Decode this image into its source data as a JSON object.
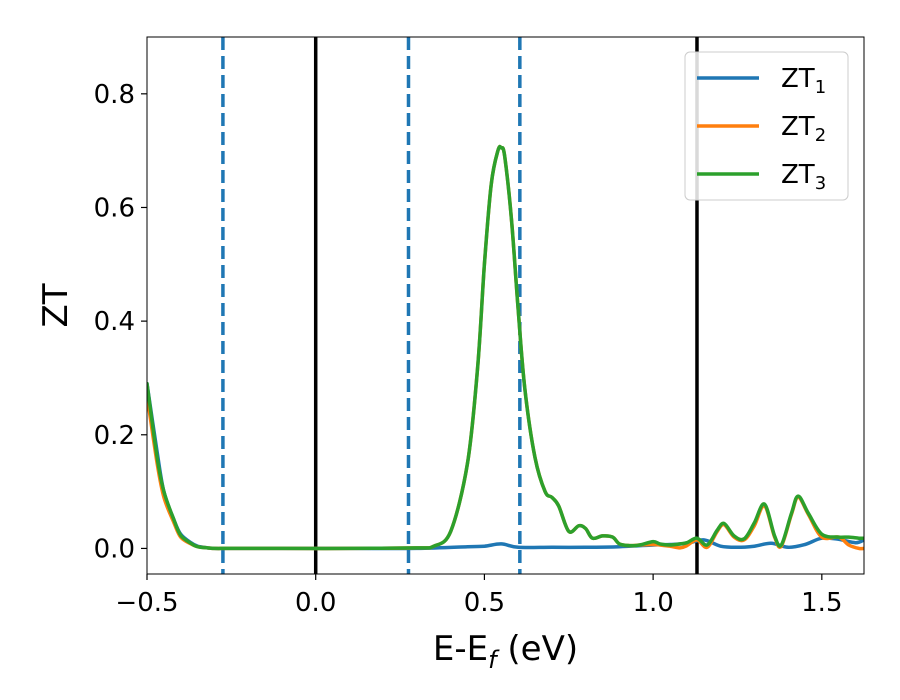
{
  "chart_data": {
    "type": "line",
    "xlabel_main": "E-E",
    "xlabel_sub": "f",
    "xlabel_unit": " (eV)",
    "ylabel": "ZT",
    "xlim": [
      -0.5,
      1.625
    ],
    "ylim": [
      -0.045,
      0.9
    ],
    "x_ticks": [
      -0.5,
      0.0,
      0.5,
      1.0,
      1.5
    ],
    "x_tick_labels": [
      "−0.5",
      "0.0",
      "0.5",
      "1.0",
      "1.5"
    ],
    "y_ticks": [
      0.0,
      0.2,
      0.4,
      0.6,
      0.8
    ],
    "y_tick_labels": [
      "0.0",
      "0.2",
      "0.4",
      "0.6",
      "0.8"
    ],
    "legend_position": "top-right",
    "vlines": [
      {
        "x": -0.275,
        "style": "dashed",
        "color": "#1f77b4"
      },
      {
        "x": 0.0,
        "style": "solid",
        "color": "#000000"
      },
      {
        "x": 0.275,
        "style": "dashed",
        "color": "#1f77b4"
      },
      {
        "x": 0.605,
        "style": "dashed",
        "color": "#1f77b4"
      },
      {
        "x": 1.13,
        "style": "solid",
        "color": "#000000"
      }
    ],
    "series": [
      {
        "name": "ZT",
        "sub": "1",
        "color": "#1f77b4",
        "x": [
          -0.5,
          -0.47,
          -0.45,
          -0.42,
          -0.4,
          -0.37,
          -0.35,
          -0.32,
          -0.3,
          -0.25,
          -0.1,
          0.1,
          0.3,
          0.45,
          0.5,
          0.55,
          0.6,
          0.7,
          0.8,
          0.9,
          1.0,
          1.05,
          1.1,
          1.15,
          1.2,
          1.25,
          1.3,
          1.35,
          1.4,
          1.45,
          1.5,
          1.55,
          1.6,
          1.625
        ],
        "y": [
          0.29,
          0.17,
          0.1,
          0.05,
          0.025,
          0.01,
          0.004,
          0.001,
          0.0,
          0.0,
          0.0,
          0.0,
          0.0,
          0.003,
          0.004,
          0.008,
          0.002,
          0.002,
          0.002,
          0.003,
          0.006,
          0.007,
          0.009,
          0.015,
          0.004,
          0.002,
          0.004,
          0.009,
          0.002,
          0.007,
          0.018,
          0.016,
          0.01,
          0.015
        ]
      },
      {
        "name": "ZT",
        "sub": "2",
        "color": "#ff7f0e",
        "x": [
          -0.5,
          -0.47,
          -0.45,
          -0.42,
          -0.4,
          -0.37,
          -0.35,
          -0.32,
          -0.3,
          -0.25,
          -0.1,
          0.1,
          0.3,
          0.35,
          0.4,
          0.45,
          0.48,
          0.5,
          0.52,
          0.54,
          0.55,
          0.56,
          0.58,
          0.6,
          0.62,
          0.65,
          0.68,
          0.7,
          0.72,
          0.75,
          0.78,
          0.8,
          0.82,
          0.85,
          0.88,
          0.9,
          0.93,
          0.96,
          1.0,
          1.02,
          1.05,
          1.08,
          1.1,
          1.13,
          1.16,
          1.19,
          1.21,
          1.24,
          1.27,
          1.3,
          1.33,
          1.36,
          1.38,
          1.41,
          1.43,
          1.46,
          1.5,
          1.55,
          1.58,
          1.61,
          1.625
        ],
        "y": [
          0.27,
          0.15,
          0.09,
          0.045,
          0.02,
          0.008,
          0.003,
          0.001,
          0.0,
          0.0,
          0.0,
          0.0,
          0.001,
          0.004,
          0.03,
          0.15,
          0.32,
          0.5,
          0.64,
          0.7,
          0.705,
          0.69,
          0.58,
          0.42,
          0.28,
          0.16,
          0.1,
          0.09,
          0.075,
          0.03,
          0.04,
          0.035,
          0.018,
          0.022,
          0.02,
          0.008,
          0.005,
          0.006,
          0.007,
          0.006,
          0.004,
          0.001,
          0.005,
          0.015,
          0.002,
          0.03,
          0.042,
          0.02,
          0.015,
          0.04,
          0.075,
          0.02,
          0.004,
          0.06,
          0.09,
          0.06,
          0.02,
          0.02,
          0.006,
          0.0,
          0.0
        ]
      },
      {
        "name": "ZT",
        "sub": "3",
        "color": "#2ca02c",
        "x": [
          -0.5,
          -0.47,
          -0.45,
          -0.42,
          -0.4,
          -0.37,
          -0.35,
          -0.32,
          -0.3,
          -0.25,
          -0.1,
          0.1,
          0.3,
          0.35,
          0.4,
          0.45,
          0.48,
          0.5,
          0.52,
          0.54,
          0.55,
          0.56,
          0.58,
          0.6,
          0.62,
          0.65,
          0.68,
          0.7,
          0.72,
          0.75,
          0.78,
          0.8,
          0.82,
          0.85,
          0.88,
          0.9,
          0.93,
          0.96,
          1.0,
          1.02,
          1.05,
          1.08,
          1.1,
          1.13,
          1.16,
          1.19,
          1.21,
          1.24,
          1.27,
          1.3,
          1.33,
          1.36,
          1.38,
          1.41,
          1.43,
          1.46,
          1.5,
          1.55,
          1.58,
          1.61,
          1.625
        ],
        "y": [
          0.29,
          0.16,
          0.1,
          0.05,
          0.023,
          0.009,
          0.003,
          0.001,
          0.0,
          0.0,
          0.0,
          0.0,
          0.001,
          0.004,
          0.03,
          0.15,
          0.32,
          0.5,
          0.64,
          0.7,
          0.705,
          0.69,
          0.58,
          0.42,
          0.28,
          0.16,
          0.1,
          0.09,
          0.075,
          0.03,
          0.04,
          0.035,
          0.018,
          0.022,
          0.02,
          0.008,
          0.005,
          0.006,
          0.012,
          0.008,
          0.006,
          0.008,
          0.01,
          0.018,
          0.006,
          0.032,
          0.044,
          0.022,
          0.017,
          0.045,
          0.078,
          0.022,
          0.006,
          0.062,
          0.092,
          0.062,
          0.025,
          0.02,
          0.02,
          0.018,
          0.018
        ]
      }
    ]
  }
}
